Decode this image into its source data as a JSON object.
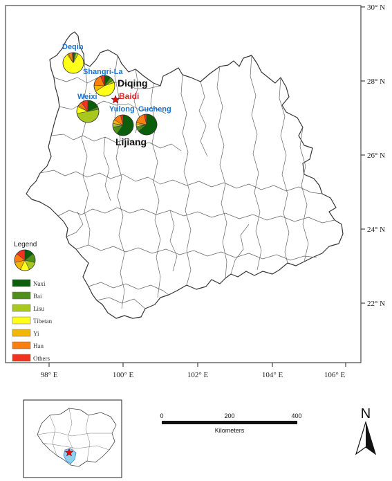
{
  "map": {
    "lon_ticks": [
      "98° E",
      "100° E",
      "102° E",
      "104° E",
      "106° E"
    ],
    "lat_ticks": [
      "30° N",
      "28° N",
      "26° N",
      "24° N",
      "22° N"
    ],
    "regions": [
      "Diqing",
      "Lijiang"
    ],
    "places": [
      "Deqin",
      "Shangri-La",
      "Weixi",
      "Yulong",
      "Gucheng"
    ],
    "highlight": "Baidi"
  },
  "colors": {
    "Naxi": "#0b5e0b",
    "Bai": "#4e8f1c",
    "Lisu": "#a8c81e",
    "Tibetan": "#ffff1a",
    "Yi": "#f2b705",
    "Han": "#ff7f0e",
    "Others": "#f0321e"
  },
  "legend": {
    "title": "Legend",
    "items": [
      "Naxi",
      "Bai",
      "Lisu",
      "Tibetan",
      "Yi",
      "Han",
      "Others"
    ]
  },
  "pies": [
    {
      "place": "Deqin",
      "shares": {
        "Naxi": 0.02,
        "Bai": 0.02,
        "Lisu": 0.04,
        "Tibetan": 0.82,
        "Yi": 0.02,
        "Han": 0.06,
        "Others": 0.02
      }
    },
    {
      "place": "Shangri-La",
      "shares": {
        "Naxi": 0.1,
        "Bai": 0.06,
        "Lisu": 0.04,
        "Tibetan": 0.46,
        "Yi": 0.1,
        "Han": 0.18,
        "Others": 0.06
      }
    },
    {
      "place": "Weixi",
      "shares": {
        "Naxi": 0.18,
        "Bai": 0.04,
        "Lisu": 0.5,
        "Tibetan": 0.1,
        "Yi": 0.02,
        "Han": 0.06,
        "Others": 0.1
      }
    },
    {
      "place": "Yulong",
      "shares": {
        "Naxi": 0.6,
        "Bai": 0.12,
        "Lisu": 0.04,
        "Tibetan": 0.02,
        "Yi": 0.06,
        "Han": 0.12,
        "Others": 0.04
      }
    },
    {
      "place": "Gucheng",
      "shares": {
        "Naxi": 0.64,
        "Bai": 0.06,
        "Lisu": 0.02,
        "Tibetan": 0.02,
        "Yi": 0.04,
        "Han": 0.18,
        "Others": 0.04
      }
    }
  ],
  "scale_bar": {
    "ticks": [
      "0",
      "200",
      "400"
    ],
    "unit": "Kilometers"
  },
  "north_arrow": {
    "label": "N"
  }
}
